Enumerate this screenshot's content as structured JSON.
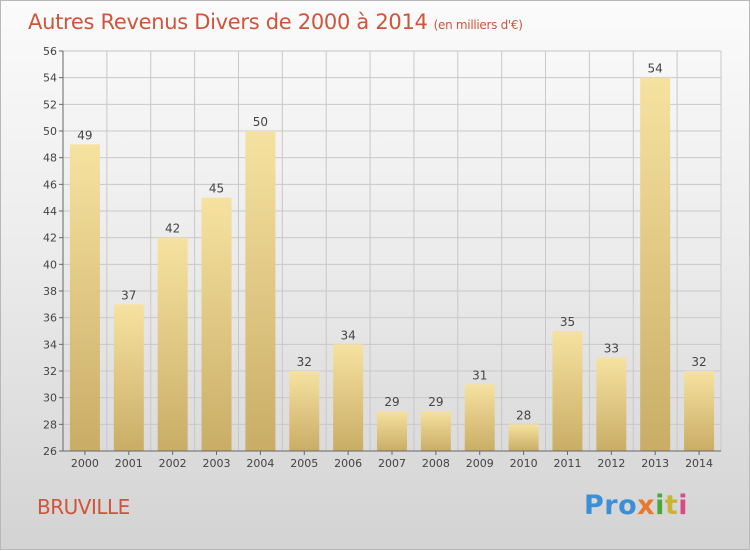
{
  "header": {
    "title": "Autres Revenus Divers de 2000 à 2014",
    "unit": "(en milliers d'€)"
  },
  "footer": {
    "commune": "BRUVILLE",
    "logo": [
      "Pro",
      "x",
      "i",
      "t",
      "i"
    ]
  },
  "colors": {
    "title": "#d0543a",
    "bar_top": "#f6e2a0",
    "bar_bottom": "#c9ad66",
    "grid": "#c8c8c8",
    "axis": "#666666"
  },
  "chart_data": {
    "type": "bar",
    "categories": [
      "2000",
      "2001",
      "2002",
      "2003",
      "2004",
      "2005",
      "2006",
      "2007",
      "2008",
      "2009",
      "2010",
      "2011",
      "2012",
      "2013",
      "2014"
    ],
    "values": [
      49,
      37,
      42,
      45,
      50,
      32,
      34,
      29,
      29,
      31,
      28,
      35,
      33,
      54,
      32
    ],
    "ylim": [
      26,
      56
    ],
    "yticks": [
      26,
      28,
      30,
      32,
      34,
      36,
      38,
      40,
      42,
      44,
      46,
      48,
      50,
      52,
      54,
      56
    ],
    "grid": true,
    "data_labels": true
  }
}
